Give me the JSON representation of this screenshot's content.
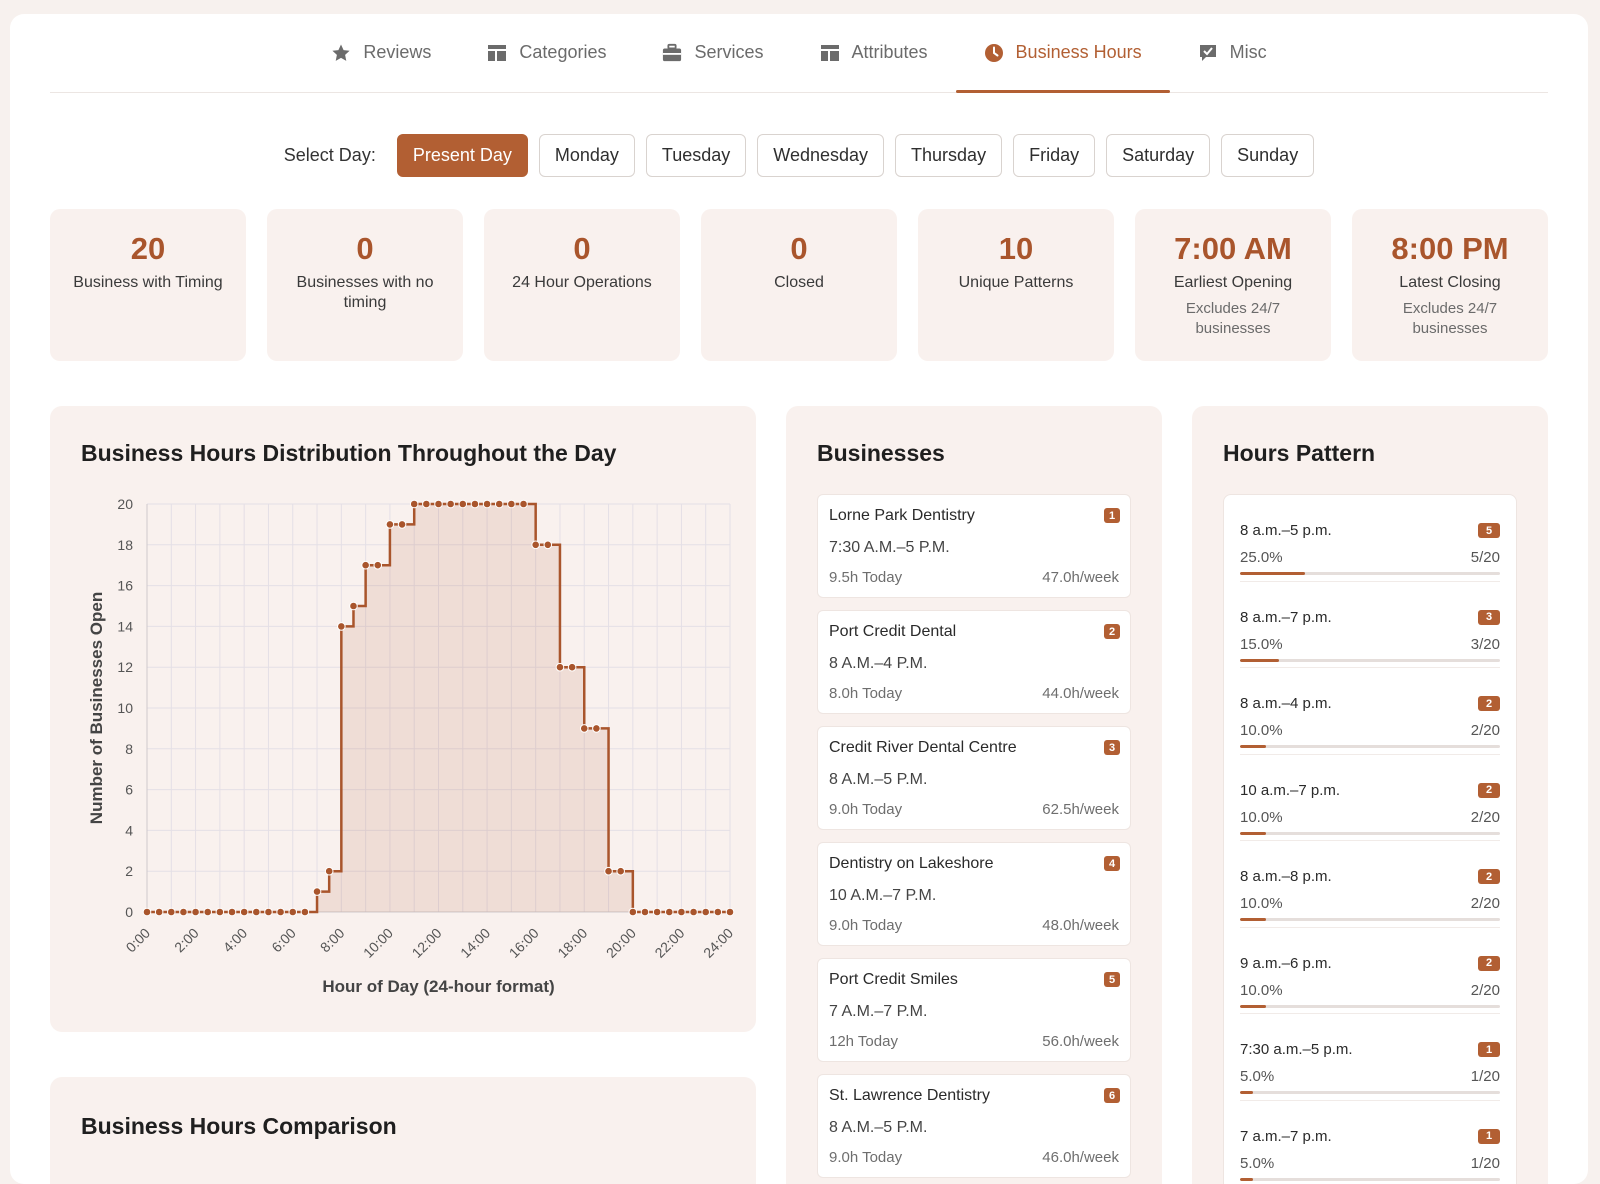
{
  "tabs": [
    {
      "label": "Reviews",
      "icon": "star-icon",
      "active": false
    },
    {
      "label": "Categories",
      "icon": "categories-icon",
      "active": false
    },
    {
      "label": "Services",
      "icon": "briefcase-icon",
      "active": false
    },
    {
      "label": "Attributes",
      "icon": "attributes-icon",
      "active": false
    },
    {
      "label": "Business Hours",
      "icon": "clock-icon",
      "active": true
    },
    {
      "label": "Misc",
      "icon": "misc-icon",
      "active": false
    }
  ],
  "day_selector": {
    "label": "Select Day:",
    "days": [
      "Present Day",
      "Monday",
      "Tuesday",
      "Wednesday",
      "Thursday",
      "Friday",
      "Saturday",
      "Sunday"
    ],
    "active": "Present Day"
  },
  "stats": [
    {
      "value": "20",
      "label": "Business with Timing",
      "sub": ""
    },
    {
      "value": "0",
      "label": "Businesses with no timing",
      "sub": ""
    },
    {
      "value": "0",
      "label": "24 Hour Operations",
      "sub": ""
    },
    {
      "value": "0",
      "label": "Closed",
      "sub": ""
    },
    {
      "value": "10",
      "label": "Unique Patterns",
      "sub": ""
    },
    {
      "value": "7:00 AM",
      "label": "Earliest Opening",
      "sub": "Excludes 24/7 businesses"
    },
    {
      "value": "8:00 PM",
      "label": "Latest Closing",
      "sub": "Excludes 24/7 businesses"
    }
  ],
  "chart_panel": {
    "title": "Business Hours Distribution Throughout the Day"
  },
  "comparison_panel": {
    "title": "Business Hours Comparison"
  },
  "chart_data": {
    "type": "line",
    "step": true,
    "area_fill": true,
    "xlabel": "Hour of Day (24-hour format)",
    "ylabel": "Number of Businesses Open",
    "xlim": [
      0,
      24
    ],
    "ylim": [
      0,
      20
    ],
    "x_ticks": [
      "0:00",
      "2:00",
      "4:00",
      "6:00",
      "8:00",
      "10:00",
      "12:00",
      "14:00",
      "16:00",
      "18:00",
      "20:00",
      "22:00",
      "24:00"
    ],
    "y_ticks": [
      0,
      2,
      4,
      6,
      8,
      10,
      12,
      14,
      16,
      18,
      20
    ],
    "grid": true,
    "color": "#a9552c",
    "x": [
      0,
      0.5,
      1,
      1.5,
      2,
      2.5,
      3,
      3.5,
      4,
      4.5,
      5,
      5.5,
      6,
      6.5,
      7,
      7.5,
      8,
      8.5,
      9,
      9.5,
      10,
      10.5,
      11,
      11.5,
      12,
      12.5,
      13,
      13.5,
      14,
      14.5,
      15,
      15.5,
      16,
      16.5,
      17,
      17.5,
      18,
      18.5,
      19,
      19.5,
      20,
      20.5,
      21,
      21.5,
      22,
      22.5,
      23,
      23.5,
      24
    ],
    "values": [
      0,
      0,
      0,
      0,
      0,
      0,
      0,
      0,
      0,
      0,
      0,
      0,
      0,
      0,
      1,
      2,
      14,
      15,
      17,
      17,
      19,
      19,
      20,
      20,
      20,
      20,
      20,
      20,
      20,
      20,
      20,
      20,
      18,
      18,
      12,
      12,
      9,
      9,
      2,
      2,
      0,
      0,
      0,
      0,
      0,
      0,
      0,
      0,
      0
    ]
  },
  "businesses_panel": {
    "title": "Businesses",
    "items": [
      {
        "num": "1",
        "name": "Lorne Park Dentistry",
        "hours": "7:30 A.M.–5 P.M.",
        "today": "9.5h Today",
        "week": "47.0h/week"
      },
      {
        "num": "2",
        "name": "Port Credit Dental",
        "hours": "8 A.M.–4 P.M.",
        "today": "8.0h Today",
        "week": "44.0h/week"
      },
      {
        "num": "3",
        "name": "Credit River Dental Centre",
        "hours": "8 A.M.–5 P.M.",
        "today": "9.0h Today",
        "week": "62.5h/week"
      },
      {
        "num": "4",
        "name": "Dentistry on Lakeshore",
        "hours": "10 A.M.–7 P.M.",
        "today": "9.0h Today",
        "week": "48.0h/week"
      },
      {
        "num": "5",
        "name": "Port Credit Smiles",
        "hours": "7 A.M.–7 P.M.",
        "today": "12h Today",
        "week": "56.0h/week"
      },
      {
        "num": "6",
        "name": "St. Lawrence Dentistry",
        "hours": "8 A.M.–5 P.M.",
        "today": "9.0h Today",
        "week": "46.0h/week"
      }
    ]
  },
  "pattern_panel": {
    "title": "Hours Pattern",
    "items": [
      {
        "pattern": "8 a.m.–5 p.m.",
        "count": "5",
        "percent": "25.0%",
        "ratio": "5/20",
        "fraction": 0.25
      },
      {
        "pattern": "8 a.m.–7 p.m.",
        "count": "3",
        "percent": "15.0%",
        "ratio": "3/20",
        "fraction": 0.15
      },
      {
        "pattern": "8 a.m.–4 p.m.",
        "count": "2",
        "percent": "10.0%",
        "ratio": "2/20",
        "fraction": 0.1
      },
      {
        "pattern": "10 a.m.–7 p.m.",
        "count": "2",
        "percent": "10.0%",
        "ratio": "2/20",
        "fraction": 0.1
      },
      {
        "pattern": "8 a.m.–8 p.m.",
        "count": "2",
        "percent": "10.0%",
        "ratio": "2/20",
        "fraction": 0.1
      },
      {
        "pattern": "9 a.m.–6 p.m.",
        "count": "2",
        "percent": "10.0%",
        "ratio": "2/20",
        "fraction": 0.1
      },
      {
        "pattern": "7:30 a.m.–5 p.m.",
        "count": "1",
        "percent": "5.0%",
        "ratio": "1/20",
        "fraction": 0.05
      },
      {
        "pattern": "7 a.m.–7 p.m.",
        "count": "1",
        "percent": "5.0%",
        "ratio": "1/20",
        "fraction": 0.05
      }
    ]
  }
}
